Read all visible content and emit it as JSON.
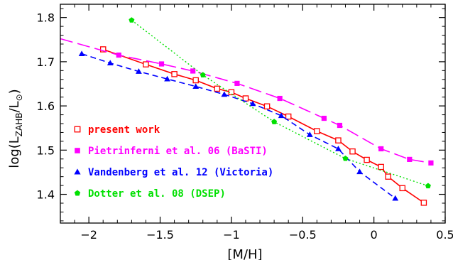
{
  "chart_data": {
    "type": "line",
    "xlabel": "[M/H]",
    "ylabel": "log(L_ZAHB/L_⊙)",
    "xlim": [
      -2.2,
      0.5
    ],
    "ylim": [
      1.335,
      1.83
    ],
    "grid": false,
    "legend_position": "bottom-left",
    "x_ticks": [
      -2,
      -1.5,
      -1,
      -0.5,
      0,
      0.5
    ],
    "x_tick_labels": [
      "−2",
      "−1.5",
      "−1",
      "−0.5",
      "0",
      "0.5"
    ],
    "y_ticks": [
      1.4,
      1.5,
      1.6,
      1.7,
      1.8
    ],
    "y_tick_labels": [
      "1.4",
      "1.5",
      "1.6",
      "1.7",
      "1.8"
    ],
    "series": [
      {
        "name": "present work",
        "color": "#ff0000",
        "marker": "open-square",
        "line": "solid",
        "x": [
          -1.9,
          -1.6,
          -1.4,
          -1.25,
          -1.1,
          -1.0,
          -0.9,
          -0.75,
          -0.6,
          -0.4,
          -0.25,
          -0.15,
          -0.05,
          0.05,
          0.1,
          0.2,
          0.35
        ],
        "y": [
          1.728,
          1.694,
          1.672,
          1.658,
          1.639,
          1.631,
          1.617,
          1.599,
          1.576,
          1.543,
          1.522,
          1.497,
          1.478,
          1.462,
          1.44,
          1.414,
          1.381
        ],
        "line_x": [
          -1.9,
          -1.6,
          -1.4,
          -1.25,
          -1.1,
          -1.0,
          -0.9,
          -0.75,
          -0.6,
          -0.4,
          -0.25,
          -0.15,
          -0.05,
          0.05,
          0.1,
          0.2,
          0.35
        ],
        "line_y": [
          1.728,
          1.694,
          1.672,
          1.658,
          1.639,
          1.631,
          1.617,
          1.599,
          1.576,
          1.543,
          1.522,
          1.497,
          1.478,
          1.462,
          1.44,
          1.414,
          1.381
        ]
      },
      {
        "name": "Pietrinferni et al. 06 (BaSTI)",
        "color": "#ff00ff",
        "marker": "filled-square",
        "line": "long-dash",
        "x": [
          -1.79,
          -1.49,
          -1.27,
          -0.96,
          -0.66,
          -0.35,
          -0.24,
          0.05,
          0.25,
          0.4
        ],
        "y": [
          1.715,
          1.695,
          1.679,
          1.651,
          1.617,
          1.572,
          1.556,
          1.503,
          1.479,
          1.471
        ],
        "line_x": [
          -2.2,
          -1.79,
          -1.49,
          -1.27,
          -0.96,
          -0.66,
          -0.35,
          -0.24,
          0.05,
          0.25,
          0.4
        ],
        "line_y": [
          1.752,
          1.715,
          1.695,
          1.679,
          1.651,
          1.617,
          1.572,
          1.556,
          1.503,
          1.479,
          1.471
        ]
      },
      {
        "name": "Vandenberg et al. 12 (Victoria)",
        "color": "#0000ff",
        "marker": "filled-triangle",
        "line": "short-dash",
        "x": [
          -2.05,
          -1.85,
          -1.65,
          -1.45,
          -1.25,
          -1.05,
          -0.85,
          -0.65,
          -0.45,
          -0.25,
          -0.1,
          0.15
        ],
        "y": [
          1.718,
          1.697,
          1.678,
          1.661,
          1.644,
          1.626,
          1.605,
          1.578,
          1.535,
          1.503,
          1.451,
          1.391
        ],
        "line_x": [
          -2.05,
          -1.85,
          -1.65,
          -1.45,
          -1.25,
          -1.05,
          -0.85,
          -0.65,
          -0.45,
          -0.25,
          -0.1,
          0.15
        ],
        "line_y": [
          1.718,
          1.697,
          1.678,
          1.661,
          1.644,
          1.626,
          1.605,
          1.578,
          1.535,
          1.503,
          1.451,
          1.391
        ]
      },
      {
        "name": "Dotter et al. 08 (DSEP)",
        "color": "#00e000",
        "marker": "filled-pentagon",
        "line": "dotted",
        "x": [
          -1.7,
          -1.2,
          -0.7,
          -0.2,
          0.38
        ],
        "y": [
          1.794,
          1.67,
          1.564,
          1.481,
          1.419
        ],
        "line_x": [
          -1.7,
          -1.2,
          -0.7,
          -0.2,
          0.38
        ],
        "line_y": [
          1.794,
          1.67,
          1.564,
          1.481,
          1.419
        ]
      }
    ]
  }
}
